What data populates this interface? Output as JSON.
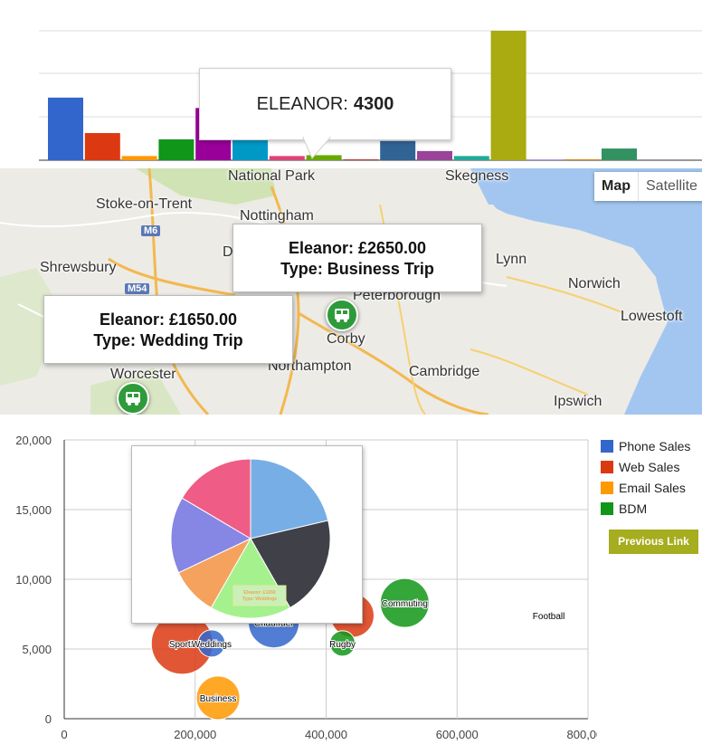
{
  "bar_chart": {
    "tooltip": {
      "name": "ELEANOR:",
      "value": "4300"
    }
  },
  "map": {
    "map_type_buttons": [
      "Map",
      "Satellite"
    ],
    "cities": [
      "National Park",
      "Skegness",
      "Stoke-on-Trent",
      "Nottingham",
      "Shrewsbury",
      "Lynn",
      "Norwich",
      "Lowestoft",
      "Peterborough",
      "Corby",
      "Northampton",
      "Cambridge",
      "Worcester",
      "Ipswich",
      "D"
    ],
    "roads": [
      "M6",
      "M54"
    ],
    "info_windows": [
      {
        "line1": "Eleanor: £2650.00",
        "line2": "Type: Business Trip"
      },
      {
        "line1": "Eleanor: £1650.00",
        "line2": "Type: Wedding Trip"
      }
    ]
  },
  "legend": {
    "items": [
      {
        "label": "Phone Sales",
        "color": "#3366cc"
      },
      {
        "label": "Web Sales",
        "color": "#dc3912"
      },
      {
        "label": "Email Sales",
        "color": "#ff9900"
      },
      {
        "label": "BDM",
        "color": "#109618"
      }
    ]
  },
  "previous_link": "Previous Link",
  "pie_popup": {
    "label_line1": "Eleanor: £1650",
    "label_line2": "Type: Weddings"
  },
  "chart_data": [
    {
      "type": "bar",
      "values": [
        150,
        65,
        10,
        50,
        125,
        50,
        10,
        12,
        2,
        46,
        22,
        10,
        310,
        1,
        2,
        28
      ],
      "colors": [
        "#3366cc",
        "#dc3912",
        "#ff9900",
        "#109618",
        "#990099",
        "#0099c6",
        "#dd4477",
        "#66aa00",
        "#b82e2e",
        "#316395",
        "#994499",
        "#22aa99",
        "#aaaa11",
        "#6633cc",
        "#e67300",
        "#329262"
      ],
      "ylim": [
        0,
        310
      ]
    },
    {
      "type": "scatter",
      "subtype": "bubble",
      "xlim": [
        0,
        800000
      ],
      "ylim": [
        0,
        20000
      ],
      "x_ticks": [
        "0",
        "200,000",
        "400,000",
        "600,000",
        "800,000"
      ],
      "y_ticks": [
        "0",
        "5,000",
        "10,000",
        "15,000",
        "20,000"
      ],
      "grid": true,
      "legend_position": "right",
      "points": [
        {
          "label": "Sports",
          "x": 180000,
          "y": 5400,
          "r": 34,
          "color": "#dc3912"
        },
        {
          "label": "Weddings",
          "x": 225000,
          "y": 5400,
          "r": 15,
          "color": "#3366cc"
        },
        {
          "label": "Chauffuer",
          "x": 320000,
          "y": 6900,
          "r": 28,
          "color": "#3366cc"
        },
        {
          "label": "t",
          "x": 440000,
          "y": 7400,
          "r": 24,
          "color": "#dc3912"
        },
        {
          "label": "Commuting",
          "x": 520000,
          "y": 8300,
          "r": 27,
          "color": "#109618"
        },
        {
          "label": "Rugby",
          "x": 425000,
          "y": 5400,
          "r": 14,
          "color": "#109618"
        },
        {
          "label": "Business",
          "x": 235000,
          "y": 1500,
          "r": 24,
          "color": "#ff9900"
        },
        {
          "label": "Football",
          "x": 740000,
          "y": 7400,
          "r": 0,
          "color": "#ffffff"
        }
      ]
    },
    {
      "type": "pie",
      "values": [
        22,
        21,
        17,
        10,
        16,
        17
      ],
      "colors": [
        "#77aee6",
        "#404048",
        "#a5f18e",
        "#f5a25e",
        "#8686e4",
        "#ef5c85"
      ]
    }
  ]
}
